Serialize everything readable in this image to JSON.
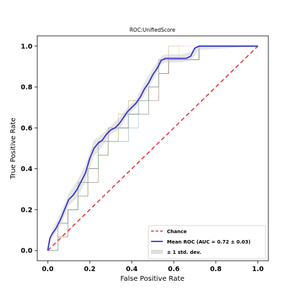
{
  "chart_data": {
    "type": "line",
    "title": "ROC:UnifiedScore",
    "xlabel": "False Positive Rate",
    "ylabel": "True Positive Rate",
    "xlim": [
      -0.05,
      1.05
    ],
    "ylim": [
      -0.05,
      1.05
    ],
    "xticks": [
      "0.0",
      "0.2",
      "0.4",
      "0.6",
      "0.8",
      "1.0"
    ],
    "yticks": [
      "0.0",
      "0.2",
      "0.4",
      "0.6",
      "0.8",
      "1.0"
    ],
    "grid": false,
    "legend_position": "lower-right",
    "legend": [
      {
        "label": "Chance",
        "style": "dashed",
        "color": "#e8333a"
      },
      {
        "label": "Mean ROC (AUC = 0.72 ± 0.03)",
        "style": "solid",
        "color": "#3333cc"
      },
      {
        "label": "± 1 std. dev.",
        "style": "band",
        "color": "#c8c8c8"
      }
    ],
    "series": [
      {
        "role": "chance",
        "x": [
          0,
          1
        ],
        "y": [
          0,
          1
        ],
        "color": "#e8333a"
      },
      {
        "role": "mean",
        "x": [
          0.0,
          0.01,
          0.02,
          0.04,
          0.06,
          0.08,
          0.1,
          0.12,
          0.14,
          0.16,
          0.18,
          0.2,
          0.22,
          0.24,
          0.26,
          0.28,
          0.3,
          0.32,
          0.34,
          0.36,
          0.38,
          0.4,
          0.42,
          0.44,
          0.46,
          0.48,
          0.5,
          0.52,
          0.54,
          0.56,
          0.58,
          0.6,
          0.62,
          0.64,
          0.66,
          0.68,
          0.7,
          0.72,
          0.74,
          1.0
        ],
        "y": [
          0.0,
          0.06,
          0.08,
          0.11,
          0.15,
          0.2,
          0.25,
          0.27,
          0.3,
          0.34,
          0.38,
          0.45,
          0.5,
          0.525,
          0.54,
          0.57,
          0.59,
          0.6,
          0.62,
          0.65,
          0.68,
          0.7,
          0.72,
          0.75,
          0.79,
          0.82,
          0.86,
          0.89,
          0.93,
          0.94,
          0.94,
          0.94,
          0.94,
          0.94,
          0.94,
          0.95,
          0.99,
          1.0,
          1.0,
          1.0
        ],
        "color": "#3333cc"
      },
      {
        "role": "std_upper",
        "x": [
          0.0,
          0.02,
          0.06,
          0.1,
          0.14,
          0.18,
          0.22,
          0.26,
          0.3,
          0.34,
          0.38,
          0.42,
          0.46,
          0.5,
          0.54,
          0.56,
          0.6,
          0.64,
          0.68,
          0.72,
          1.0
        ],
        "y": [
          0.0,
          0.1,
          0.18,
          0.28,
          0.34,
          0.42,
          0.54,
          0.57,
          0.61,
          0.65,
          0.7,
          0.74,
          0.82,
          0.89,
          0.95,
          0.96,
          0.96,
          0.96,
          0.97,
          1.0,
          1.0
        ]
      },
      {
        "role": "std_lower",
        "x": [
          0.0,
          0.02,
          0.06,
          0.1,
          0.14,
          0.18,
          0.22,
          0.26,
          0.3,
          0.34,
          0.38,
          0.42,
          0.46,
          0.5,
          0.54,
          0.56,
          0.6,
          0.64,
          0.68,
          0.72,
          1.0
        ],
        "y": [
          0.0,
          0.06,
          0.12,
          0.22,
          0.26,
          0.34,
          0.46,
          0.51,
          0.57,
          0.59,
          0.66,
          0.7,
          0.76,
          0.83,
          0.91,
          0.92,
          0.92,
          0.92,
          0.93,
          0.98,
          1.0
        ]
      }
    ],
    "fold_colors": [
      "#1f77b4",
      "#ff7f0e",
      "#2ca02c",
      "#d62728",
      "#9467bd",
      "#8c564b",
      "#e377c2",
      "#7f7f7f",
      "#bcbd22",
      "#17becf"
    ]
  }
}
